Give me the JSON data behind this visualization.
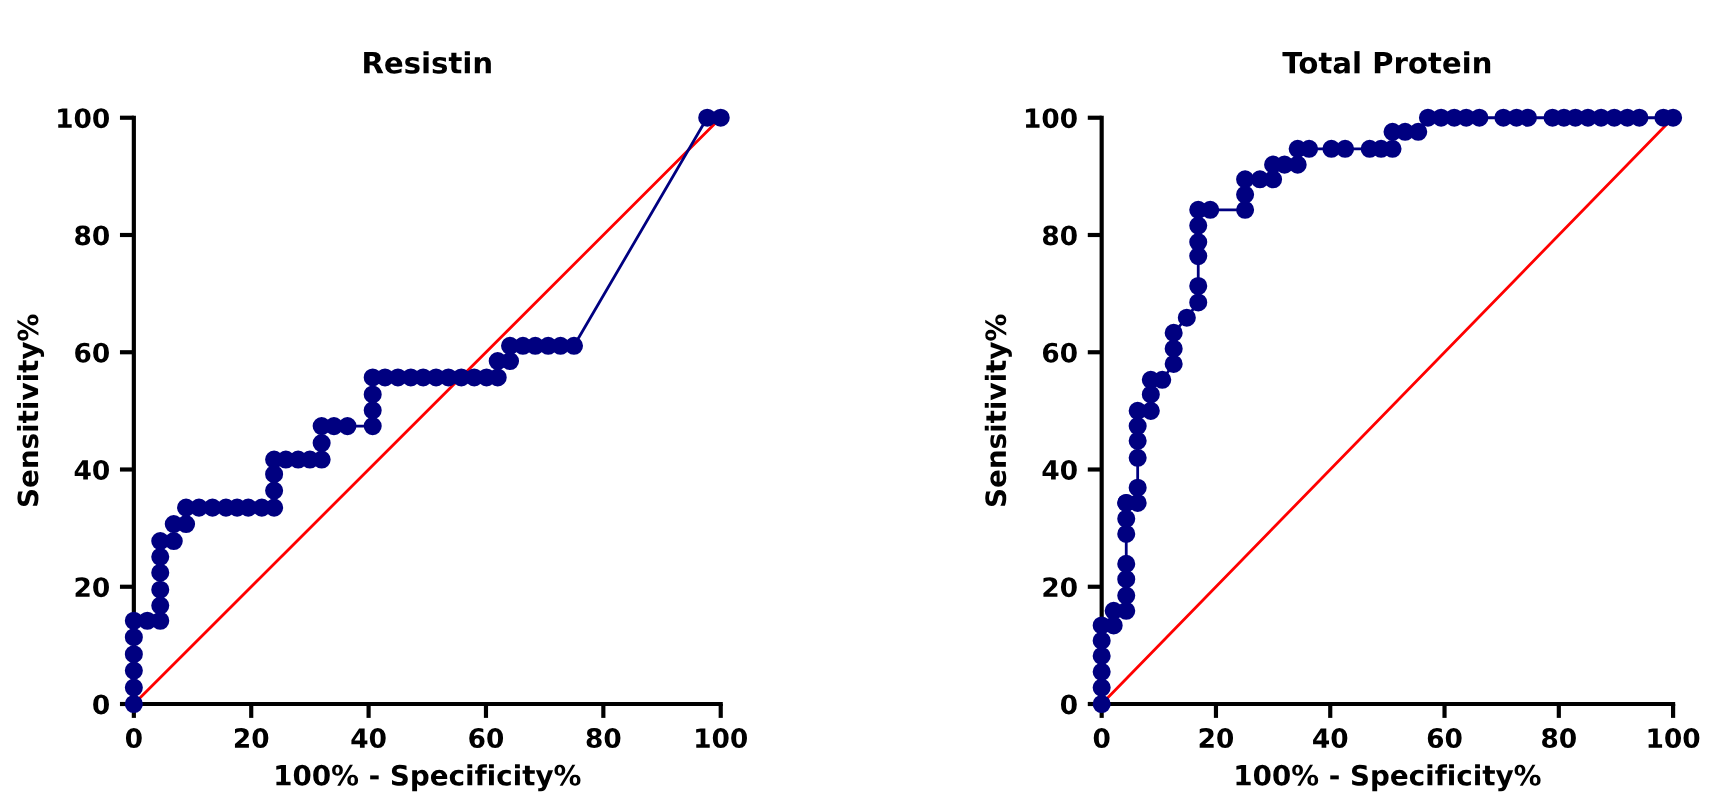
{
  "chart_data": [
    {
      "type": "line",
      "title": "Resistin",
      "xlabel": "100% - Specificity%",
      "ylabel": "Sensitivity%",
      "xlim": [
        0,
        100
      ],
      "ylim": [
        0,
        100
      ],
      "xticks": [
        0,
        20,
        40,
        60,
        80,
        100
      ],
      "yticks": [
        0,
        20,
        40,
        60,
        80,
        100
      ],
      "grid": false,
      "legend": false,
      "series": [
        {
          "color": "#000080",
          "marker": "circle",
          "x": [
            0,
            0,
            0,
            0,
            0,
            0,
            2.3,
            4.5,
            4.5,
            4.5,
            4.5,
            4.5,
            4.5,
            6.8,
            6.8,
            8.9,
            8.9,
            11.1,
            13.4,
            15.7,
            17.6,
            19.5,
            21.8,
            23.9,
            23.9,
            23.9,
            23.9,
            25.9,
            28.0,
            30.0,
            32.0,
            32.0,
            32.0,
            34.1,
            36.4,
            40.7,
            40.7,
            40.7,
            40.7,
            42.8,
            45.0,
            47.2,
            49.3,
            51.5,
            53.6,
            55.8,
            58.0,
            60.1,
            62.0,
            62.0,
            64.1,
            64.1,
            66.3,
            68.4,
            70.6,
            72.7,
            75.0,
            97.7,
            100
          ],
          "values": [
            0,
            2.8,
            5.7,
            8.5,
            11.4,
            14.2,
            14.2,
            14.2,
            16.8,
            19.5,
            22.4,
            25.1,
            27.8,
            27.8,
            30.7,
            30.7,
            33.5,
            33.5,
            33.5,
            33.5,
            33.5,
            33.5,
            33.5,
            33.5,
            36.4,
            39.2,
            41.7,
            41.7,
            41.7,
            41.7,
            41.7,
            44.5,
            47.4,
            47.4,
            47.4,
            47.4,
            50.1,
            52.8,
            55.7,
            55.7,
            55.7,
            55.7,
            55.7,
            55.7,
            55.7,
            55.7,
            55.7,
            55.7,
            55.7,
            58.5,
            58.5,
            61.1,
            61.1,
            61.1,
            61.1,
            61.1,
            61.1,
            100,
            100
          ]
        },
        {
          "color": "#ff0000",
          "marker": "none",
          "x": [
            0,
            100
          ],
          "values": [
            0,
            100
          ]
        }
      ]
    },
    {
      "type": "line",
      "title": "Total Protein",
      "xlabel": "100% - Specificity%",
      "ylabel": "Sensitivity%",
      "xlim": [
        0,
        100
      ],
      "ylim": [
        0,
        100
      ],
      "xticks": [
        0,
        20,
        40,
        60,
        80,
        100
      ],
      "yticks": [
        0,
        20,
        40,
        60,
        80,
        100
      ],
      "grid": false,
      "legend": false,
      "series": [
        {
          "color": "#000080",
          "marker": "circle",
          "x": [
            0,
            0,
            0,
            0,
            0,
            0,
            2.1,
            2.1,
            4.3,
            4.3,
            4.3,
            4.3,
            4.3,
            4.3,
            4.3,
            4.3,
            6.3,
            6.3,
            6.3,
            6.3,
            6.3,
            6.3,
            8.6,
            8.6,
            8.6,
            10.6,
            12.6,
            12.6,
            12.6,
            14.9,
            16.9,
            16.9,
            16.9,
            16.9,
            16.9,
            16.9,
            19.0,
            25.1,
            25.1,
            25.1,
            27.7,
            30.0,
            30.0,
            32.0,
            34.3,
            34.3,
            36.3,
            40.2,
            42.6,
            46.9,
            48.9,
            50.9,
            50.9,
            53.1,
            55.4,
            57.1,
            59.4,
            61.7,
            63.8,
            66.1,
            70.3,
            72.6,
            74.6,
            78.9,
            80.9,
            82.9,
            85.1,
            87.4,
            89.7,
            92.0,
            94.1,
            98.3,
            100
          ],
          "values": [
            0,
            2.8,
            5.5,
            8.2,
            10.8,
            13.4,
            13.4,
            15.9,
            15.9,
            18.5,
            21.3,
            23.9,
            29.0,
            31.6,
            34.3,
            34.3,
            34.3,
            36.9,
            42.0,
            44.9,
            47.4,
            50.0,
            50.0,
            52.8,
            55.3,
            55.3,
            58.0,
            60.6,
            63.3,
            65.9,
            68.5,
            71.3,
            76.4,
            78.8,
            81.6,
            84.3,
            84.3,
            84.3,
            86.9,
            89.5,
            89.5,
            89.5,
            92.0,
            92.0,
            92.0,
            94.7,
            94.7,
            94.7,
            94.7,
            94.7,
            94.7,
            94.7,
            97.6,
            97.6,
            97.6,
            100,
            100,
            100,
            100,
            100,
            100,
            100,
            100,
            100,
            100,
            100,
            100,
            100,
            100,
            100,
            100,
            100,
            100
          ]
        },
        {
          "color": "#ff0000",
          "marker": "none",
          "x": [
            0,
            100
          ],
          "values": [
            0,
            100
          ]
        }
      ]
    }
  ]
}
